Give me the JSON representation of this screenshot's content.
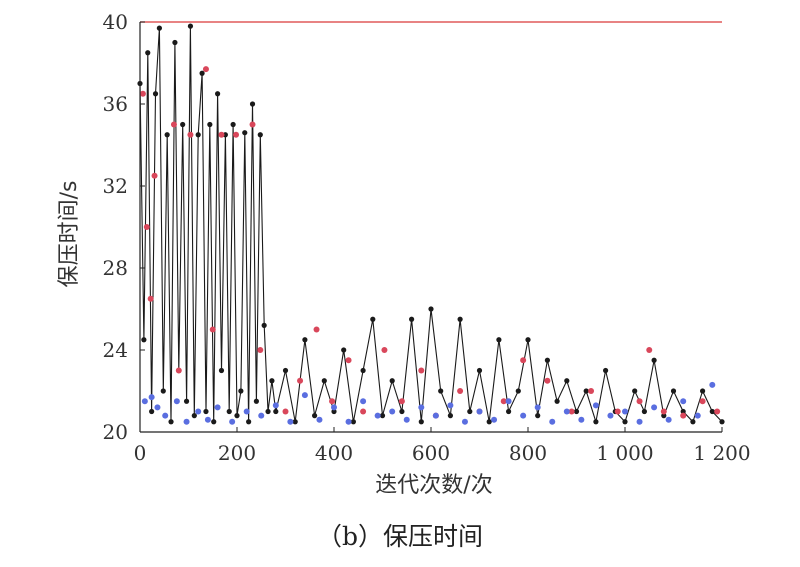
{
  "chart_data": {
    "type": "line",
    "xlabel": "迭代次数/次",
    "ylabel": "保压时间/s",
    "caption": "（b）保压时间",
    "x_ticks": [
      "0",
      "200",
      "400",
      "600",
      "800",
      "1 000",
      "1 200"
    ],
    "y_ticks": [
      "20",
      "24",
      "28",
      "32",
      "36",
      "40"
    ],
    "xlim": [
      0,
      1200
    ],
    "ylim": [
      20,
      40
    ],
    "grid": false,
    "legend": "none",
    "series": [
      {
        "type": "reference-line",
        "color": "#e05a5a",
        "x": [
          0,
          1200
        ],
        "y": [
          40,
          40
        ]
      },
      {
        "type": "line",
        "color": "#1a1a1a",
        "x": [
          0,
          8,
          16,
          24,
          32,
          40,
          48,
          56,
          64,
          72,
          80,
          88,
          96,
          104,
          112,
          120,
          128,
          136,
          144,
          152,
          160,
          168,
          176,
          184,
          192,
          200,
          208,
          216,
          224,
          232,
          240,
          248,
          256,
          264,
          272,
          280,
          300,
          320,
          340,
          360,
          380,
          400,
          420,
          440,
          460,
          480,
          500,
          520,
          540,
          560,
          580,
          600,
          620,
          640,
          660,
          680,
          700,
          720,
          740,
          760,
          780,
          800,
          820,
          840,
          860,
          880,
          900,
          920,
          940,
          960,
          980,
          1000,
          1020,
          1040,
          1060,
          1080,
          1100,
          1120,
          1140,
          1160,
          1180,
          1200
        ],
        "y": [
          37.0,
          24.5,
          38.5,
          21.0,
          36.5,
          39.7,
          22.0,
          34.5,
          20.5,
          39.0,
          23.0,
          35.0,
          21.5,
          39.8,
          20.8,
          34.5,
          37.5,
          21.0,
          35.0,
          20.5,
          36.5,
          23.0,
          34.5,
          21.0,
          35.0,
          20.8,
          22.0,
          34.6,
          20.5,
          36.0,
          21.5,
          34.5,
          25.2,
          21.0,
          22.5,
          21.0,
          23.0,
          20.5,
          24.5,
          20.8,
          22.5,
          21.0,
          24.0,
          20.5,
          23.0,
          25.5,
          20.8,
          22.5,
          21.0,
          25.5,
          20.5,
          26.0,
          22.0,
          20.8,
          25.5,
          21.0,
          23.0,
          20.5,
          24.5,
          21.0,
          22.0,
          24.5,
          20.8,
          23.5,
          21.5,
          22.5,
          21.0,
          22.0,
          20.5,
          23.0,
          21.0,
          20.5,
          22.0,
          21.0,
          23.5,
          20.8,
          22.0,
          21.0,
          20.5,
          22.0,
          21.0,
          20.5
        ]
      },
      {
        "type": "scatter",
        "color": "#d9475b",
        "x": [
          6,
          14,
          22,
          30,
          70,
          80,
          104,
          136,
          150,
          168,
          198,
          232,
          248,
          300,
          330,
          364,
          396,
          430,
          460,
          504,
          540,
          580,
          610,
          660,
          700,
          750,
          790,
          840,
          890,
          930,
          985,
          1030,
          1050,
          1080,
          1120,
          1160,
          1190
        ],
        "y": [
          36.5,
          30.0,
          26.5,
          32.5,
          35.0,
          23.0,
          34.5,
          37.7,
          25.0,
          34.5,
          34.5,
          35.0,
          24.0,
          21.0,
          22.5,
          25.0,
          21.5,
          23.5,
          21.0,
          24.0,
          21.5,
          23.0,
          20.8,
          22.0,
          21.0,
          21.5,
          23.5,
          22.5,
          21.0,
          22.0,
          21.0,
          21.5,
          24.0,
          21.0,
          20.8,
          21.5,
          21.0
        ]
      },
      {
        "type": "scatter",
        "color": "#5a6ee0",
        "x": [
          10,
          24,
          36,
          52,
          76,
          96,
          120,
          140,
          160,
          190,
          220,
          250,
          280,
          310,
          340,
          370,
          400,
          430,
          460,
          490,
          520,
          550,
          580,
          610,
          640,
          670,
          700,
          730,
          760,
          790,
          820,
          850,
          880,
          910,
          940,
          970,
          1000,
          1030,
          1060,
          1090,
          1120,
          1150,
          1180
        ],
        "y": [
          21.5,
          21.7,
          21.2,
          20.8,
          21.5,
          20.5,
          21.0,
          20.6,
          21.2,
          20.5,
          21.0,
          20.8,
          21.3,
          20.5,
          21.8,
          20.6,
          21.2,
          20.5,
          21.5,
          20.8,
          21.0,
          20.6,
          21.2,
          20.8,
          21.3,
          20.5,
          21.0,
          20.6,
          21.5,
          20.8,
          21.2,
          20.5,
          21.0,
          20.6,
          21.3,
          20.8,
          21.0,
          20.5,
          21.2,
          20.6,
          21.5,
          20.8,
          22.3
        ]
      }
    ]
  }
}
